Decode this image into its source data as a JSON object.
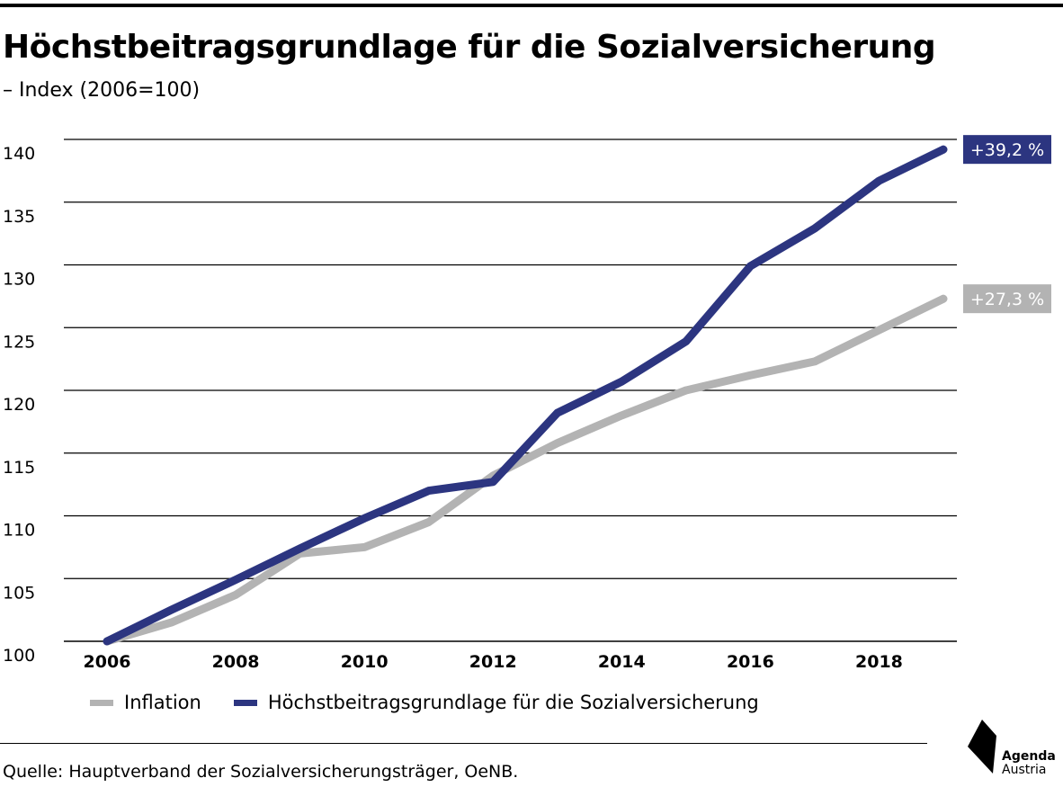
{
  "header": {
    "title": "Höchstbeitragsgrundlage für die Sozialversicherung",
    "subtitle": "– Index (2006=100)"
  },
  "chart_data": {
    "type": "line",
    "x": [
      2006,
      2007,
      2008,
      2009,
      2010,
      2011,
      2012,
      2013,
      2014,
      2015,
      2016,
      2017,
      2018,
      2019
    ],
    "xticks": [
      "2006",
      "2008",
      "2010",
      "2012",
      "2014",
      "2016",
      "2018"
    ],
    "yticks": [
      "100",
      "105",
      "110",
      "115",
      "120",
      "125",
      "130",
      "135",
      "140"
    ],
    "ylim": [
      100,
      142
    ],
    "grid": true,
    "legend_position": "bottom-left",
    "series": [
      {
        "name": "Inflation",
        "color": "#b3b3b3",
        "values": [
          100.0,
          101.5,
          103.7,
          107.0,
          107.5,
          109.5,
          113.2,
          115.8,
          118.0,
          120.0,
          121.2,
          122.3,
          124.8,
          127.3
        ],
        "end_label": "+27,3 %"
      },
      {
        "name": "Höchstbeitragsgrundlage für die Sozialversicherung",
        "color": "#2c3580",
        "values": [
          100.0,
          102.5,
          104.9,
          107.4,
          109.8,
          112.0,
          112.7,
          118.2,
          120.7,
          123.9,
          129.9,
          132.9,
          136.7,
          139.2
        ],
        "end_label": "+39,2 %"
      }
    ]
  },
  "footer": {
    "source": "Quelle: Hauptverband der Sozialversicherungsträger, OeNB.",
    "logo_line1": "Agenda",
    "logo_line2": "Austria"
  }
}
